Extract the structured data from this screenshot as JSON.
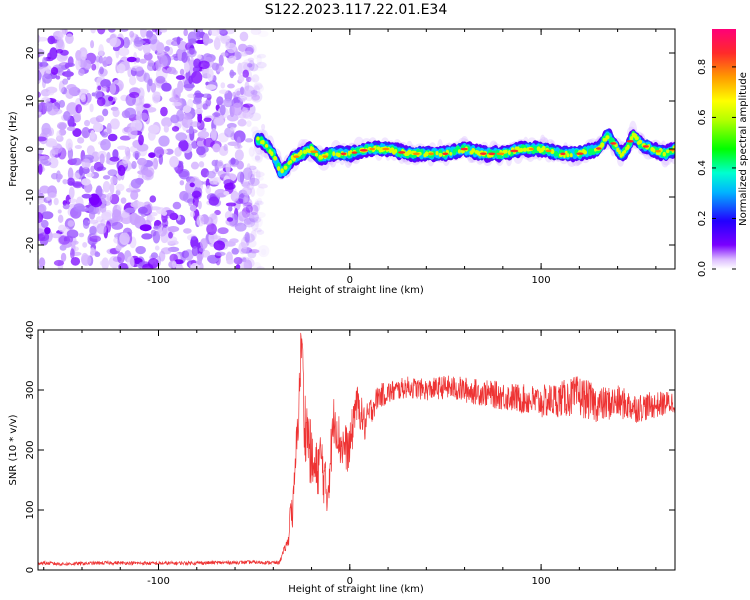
{
  "title": "S122.2023.117.22.01.E34",
  "colors": {
    "snr_line": "#ee3333",
    "axis": "#000000"
  },
  "chart_data": [
    {
      "type": "heatmap",
      "xlabel": "Height of straight line (km)",
      "ylabel": "Frequency (Hz)",
      "xlim": [
        -163,
        170
      ],
      "ylim": [
        -25,
        25
      ],
      "xticks": [
        -100,
        0,
        100
      ],
      "yticks": [
        -20,
        -10,
        0,
        10,
        20
      ],
      "colorbar": {
        "label": "Normalized spectral amplitude",
        "range": [
          0,
          0.95
        ],
        "ticks": [
          "0.0",
          "0.2",
          "0.4",
          "0.6",
          "0.8"
        ],
        "colormap": [
          "#ffffff",
          "#6a00ff",
          "#0000ff",
          "#00ffff",
          "#00ff00",
          "#ffff00",
          "#ff7700",
          "#ff0033",
          "#ff0077"
        ]
      },
      "noise_region": {
        "x": [
          -163,
          -48
        ],
        "freq": [
          -25,
          25
        ]
      },
      "ridge": {
        "x": [
          -48,
          -44,
          -40,
          -36,
          -33,
          -30,
          -25,
          -20,
          -15,
          -10,
          -5,
          0,
          10,
          20,
          30,
          40,
          50,
          60,
          70,
          80,
          90,
          100,
          110,
          120,
          130,
          135,
          138,
          142,
          145,
          148,
          152,
          158,
          165,
          170
        ],
        "freq": [
          2,
          1,
          -1,
          -5,
          -4,
          -2,
          -1,
          0,
          -2,
          -1,
          -1,
          -1,
          0,
          0,
          -1,
          -1,
          -1,
          0,
          -1,
          -1,
          0,
          0,
          -1,
          -1,
          0,
          3,
          1,
          -1,
          0,
          3,
          1,
          0,
          -1,
          0
        ]
      }
    },
    {
      "type": "line",
      "xlabel": "Height of straight line (km)",
      "ylabel": "SNR (10 * v/v)",
      "xlim": [
        -163,
        170
      ],
      "ylim": [
        0,
        400
      ],
      "xticks": [
        -100,
        0,
        100
      ],
      "yticks": [
        0,
        100,
        200,
        300,
        400
      ],
      "series": [
        {
          "x": [
            -163,
            -150,
            -125,
            -100,
            -75,
            -50,
            -37,
            -32,
            -31,
            -30,
            -29,
            -28,
            -27,
            -26,
            -25,
            -24,
            -22,
            -20,
            -18,
            -15,
            -12,
            -8,
            -5,
            0,
            3,
            6,
            8,
            10,
            15,
            20,
            25,
            30,
            40,
            50,
            60,
            70,
            80,
            90,
            100,
            110,
            120,
            130,
            140,
            150,
            160,
            170
          ],
          "y": [
            12,
            10,
            12,
            11,
            12,
            13,
            12,
            50,
            110,
            90,
            140,
            200,
            250,
            330,
            400,
            250,
            230,
            180,
            160,
            190,
            120,
            260,
            210,
            200,
            280,
            260,
            240,
            260,
            290,
            295,
            300,
            305,
            300,
            305,
            300,
            295,
            290,
            285,
            280,
            285,
            290,
            275,
            280,
            270,
            275,
            280
          ],
          "noise_amplitude": [
            3,
            3,
            3,
            3,
            3,
            3,
            3,
            10,
            20,
            25,
            30,
            35,
            40,
            45,
            50,
            60,
            60,
            55,
            50,
            50,
            45,
            45,
            40,
            40,
            35,
            30,
            30,
            25,
            20,
            20,
            18,
            18,
            18,
            20,
            22,
            22,
            24,
            25,
            28,
            30,
            35,
            30,
            28,
            25,
            22,
            20
          ]
        }
      ]
    }
  ]
}
